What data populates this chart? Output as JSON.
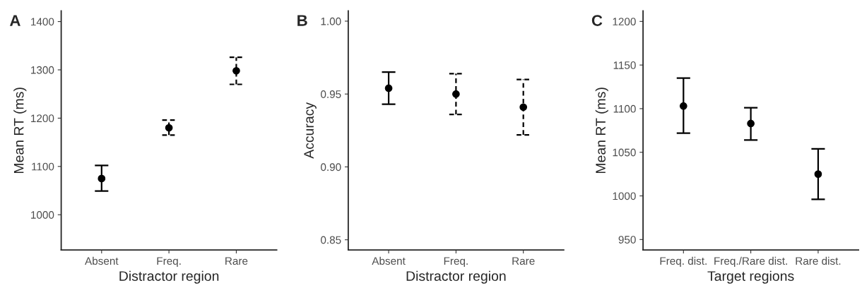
{
  "chart_data": [
    {
      "type": "scatter",
      "title": "A",
      "xlabel": "Distractor region",
      "ylabel": "Mean RT (ms)",
      "categories": [
        "Absent",
        "Freq.",
        "Rare"
      ],
      "ylim": [
        927,
        1422
      ],
      "yticks": [
        1000,
        1100,
        1200,
        1300,
        1400
      ],
      "grid": false,
      "marker": "circle",
      "series": [
        {
          "color": "#000000",
          "line_style": "solid",
          "values": [
            1075,
            null,
            null
          ],
          "errors": [
            [
              1049,
              1102
            ],
            null,
            null
          ]
        },
        {
          "color": "#000000",
          "line_style": "dashed",
          "values": [
            null,
            1180,
            1298
          ],
          "errors": [
            null,
            [
              1165,
              1196
            ],
            [
              1270,
              1326
            ]
          ]
        }
      ]
    },
    {
      "type": "scatter",
      "title": "B",
      "xlabel": "Distractor region",
      "ylabel": "Accuracy",
      "categories": [
        "Absent",
        "Freq.",
        "Rare"
      ],
      "ylim": [
        0.843,
        1.007
      ],
      "yticks": [
        {
          "value": 0.85,
          "label": "0.85"
        },
        {
          "value": 0.9,
          "label": "0.90"
        },
        {
          "value": 0.95,
          "label": "0.95"
        },
        {
          "value": 1.0,
          "label": "1.00"
        }
      ],
      "grid": false,
      "marker": "circle",
      "series": [
        {
          "color": "#000000",
          "line_style": "solid",
          "values": [
            0.954,
            null,
            null
          ],
          "errors": [
            [
              0.943,
              0.965
            ],
            null,
            null
          ]
        },
        {
          "color": "#000000",
          "line_style": "dashed",
          "values": [
            null,
            0.95,
            0.941
          ],
          "errors": [
            null,
            [
              0.936,
              0.964
            ],
            [
              0.922,
              0.96
            ]
          ]
        }
      ]
    },
    {
      "type": "scatter",
      "title": "C",
      "xlabel": "Target regions",
      "ylabel": "Mean RT (ms)",
      "categories": [
        "Freq. dist.",
        "Freq./Rare dist.",
        "Rare dist."
      ],
      "ylim": [
        938,
        1212
      ],
      "yticks": [
        950,
        1000,
        1050,
        1100,
        1150,
        1200
      ],
      "grid": false,
      "marker": "circle",
      "series": [
        {
          "color": "#000000",
          "line_style": "solid",
          "values": [
            1103,
            1083,
            1025
          ],
          "errors": [
            [
              1072,
              1135
            ],
            [
              1064,
              1101
            ],
            [
              996,
              1054
            ]
          ]
        }
      ]
    }
  ]
}
